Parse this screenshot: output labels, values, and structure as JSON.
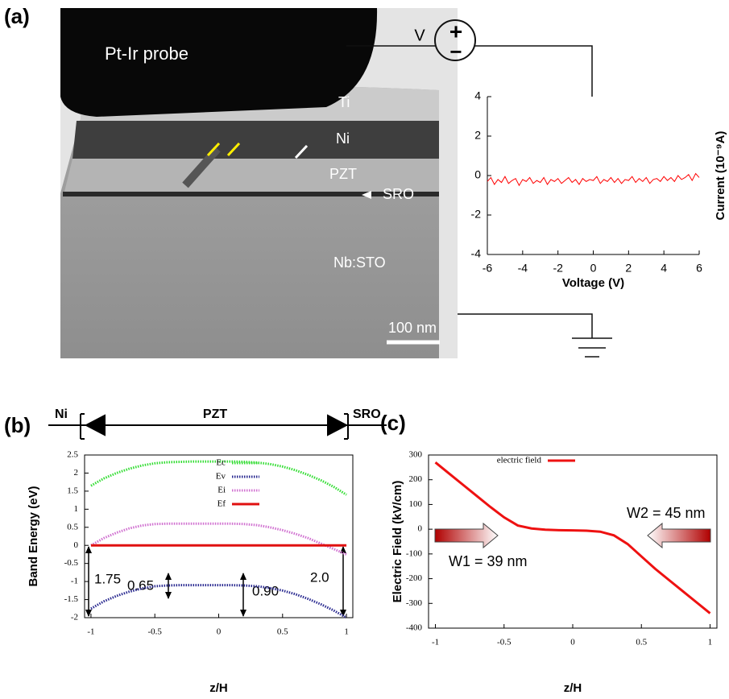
{
  "panel_labels": [
    "(a)",
    "(b)",
    "(c)"
  ],
  "tem": {
    "probe": "Pt-Ir probe",
    "ti": "Ti",
    "ni": "Ni",
    "pzt": "PZT",
    "sro": "SRO",
    "sto": "Nb:STO",
    "scale": "100 nm"
  },
  "circuit": {
    "v": "V",
    "plus": "+",
    "minus": "−"
  },
  "band_header": {
    "left": "Ni",
    "middle": "PZT",
    "right": "SRO"
  },
  "chart_data": [
    {
      "type": "line",
      "xlabel": "Voltage (V)",
      "ylabel": "Current (10⁻⁹A)",
      "xlim": [
        -6,
        6
      ],
      "xticks": [
        -6,
        -4,
        -2,
        0,
        2,
        4,
        6
      ],
      "ylim": [
        -4,
        4
      ],
      "yticks": [
        -4,
        -2,
        0,
        2,
        4
      ],
      "x": [
        -6,
        -5.8,
        -5.6,
        -5.4,
        -5.2,
        -5,
        -4.8,
        -4.6,
        -4.4,
        -4.2,
        -4,
        -3.8,
        -3.6,
        -3.4,
        -3.2,
        -3,
        -2.8,
        -2.6,
        -2.4,
        -2.2,
        -2,
        -1.8,
        -1.6,
        -1.4,
        -1.2,
        -1,
        -0.8,
        -0.6,
        -0.4,
        -0.2,
        0,
        0.2,
        0.4,
        0.6,
        0.8,
        1,
        1.2,
        1.4,
        1.6,
        1.8,
        2,
        2.2,
        2.4,
        2.6,
        2.8,
        3,
        3.2,
        3.4,
        3.6,
        3.8,
        4,
        4.2,
        4.4,
        4.6,
        4.8,
        5,
        5.2,
        5.4,
        5.6,
        5.8,
        6
      ],
      "series": [
        {
          "color": "#ff0000",
          "values": [
            -0.3,
            -0.1,
            -0.45,
            -0.2,
            -0.35,
            -0.05,
            -0.4,
            -0.25,
            -0.15,
            -0.5,
            -0.2,
            -0.3,
            -0.1,
            -0.4,
            -0.25,
            -0.35,
            -0.1,
            -0.45,
            -0.2,
            -0.3,
            -0.15,
            -0.4,
            -0.25,
            -0.1,
            -0.35,
            -0.2,
            -0.45,
            -0.15,
            -0.3,
            -0.2,
            -0.25,
            -0.05,
            -0.4,
            -0.2,
            -0.3,
            -0.1,
            -0.35,
            -0.15,
            -0.4,
            -0.2,
            -0.25,
            -0.05,
            -0.35,
            -0.15,
            -0.3,
            -0.1,
            -0.4,
            -0.2,
            -0.15,
            -0.3,
            -0.05,
            -0.25,
            -0.1,
            -0.3,
            0,
            -0.2,
            -0.1,
            0.05,
            -0.25,
            0.1,
            -0.1
          ]
        }
      ]
    },
    {
      "type": "line",
      "xlabel": "z/H",
      "ylabel": "Band Energy (eV)",
      "legend": "upper center",
      "xlim": [
        -1.05,
        1.05
      ],
      "xticks": [
        -1,
        -0.5,
        0,
        0.5,
        1
      ],
      "ylim": [
        -2,
        2.5
      ],
      "yticks": [
        -2,
        -1.5,
        -1,
        -0.5,
        0,
        0.5,
        1,
        1.5,
        2,
        2.5
      ],
      "x": [
        -1,
        -0.9,
        -0.8,
        -0.7,
        -0.6,
        -0.5,
        -0.4,
        -0.3,
        -0.2,
        -0.1,
        0,
        0.1,
        0.2,
        0.3,
        0.4,
        0.5,
        0.6,
        0.7,
        0.8,
        0.9,
        1
      ],
      "series": [
        {
          "name": "Ec",
          "color": "#33dd33",
          "line_style": "dotted",
          "values": [
            1.65,
            1.85,
            2.0,
            2.12,
            2.21,
            2.27,
            2.3,
            2.31,
            2.32,
            2.32,
            2.32,
            2.32,
            2.31,
            2.29,
            2.25,
            2.18,
            2.08,
            1.95,
            1.8,
            1.62,
            1.4
          ]
        },
        {
          "name": "Ev",
          "color": "#2a2a90",
          "line_style": "dotted",
          "values": [
            -1.75,
            -1.55,
            -1.4,
            -1.28,
            -1.19,
            -1.13,
            -1.11,
            -1.1,
            -1.1,
            -1.1,
            -1.1,
            -1.1,
            -1.11,
            -1.13,
            -1.18,
            -1.25,
            -1.35,
            -1.48,
            -1.63,
            -1.8,
            -2.0
          ]
        },
        {
          "name": "Ei",
          "color": "#d070d0",
          "line_style": "dotted",
          "values": [
            0,
            0.2,
            0.35,
            0.47,
            0.55,
            0.59,
            0.6,
            0.6,
            0.6,
            0.6,
            0.6,
            0.6,
            0.59,
            0.56,
            0.5,
            0.42,
            0.32,
            0.2,
            0.05,
            -0.1,
            -0.25
          ]
        },
        {
          "name": "Ef",
          "color": "#e01010",
          "line_style": "solid",
          "values": [
            0,
            0,
            0,
            0,
            0,
            0,
            0,
            0,
            0,
            0,
            0,
            0,
            0,
            0,
            0,
            0,
            0,
            0,
            0,
            0,
            0
          ]
        }
      ],
      "annotations": [
        "1.75",
        "0.65",
        "0.90",
        "2.0"
      ]
    },
    {
      "type": "line",
      "xlabel": "z/H",
      "ylabel": "Electric Field (kV/cm)",
      "legend": "upper left",
      "xlim": [
        -1.05,
        1.05
      ],
      "xticks": [
        -1,
        -0.5,
        0,
        0.5,
        1
      ],
      "ylim": [
        -400,
        300
      ],
      "yticks": [
        -400,
        -300,
        -200,
        -100,
        0,
        100,
        200,
        300
      ],
      "x": [
        -1,
        -0.9,
        -0.8,
        -0.7,
        -0.6,
        -0.5,
        -0.4,
        -0.3,
        -0.2,
        -0.1,
        0,
        0.1,
        0.2,
        0.3,
        0.4,
        0.5,
        0.6,
        0.7,
        0.8,
        0.9,
        1
      ],
      "series": [
        {
          "name": "electric field",
          "color": "#ee1111",
          "line_style": "solid",
          "values": [
            270,
            225,
            180,
            135,
            90,
            48,
            15,
            3,
            -2,
            -4,
            -5,
            -6,
            -10,
            -25,
            -60,
            -110,
            -160,
            -205,
            -250,
            -295,
            -340
          ]
        }
      ],
      "annotations": [
        "W1 = 39 nm",
        "W2 = 45 nm"
      ]
    }
  ]
}
